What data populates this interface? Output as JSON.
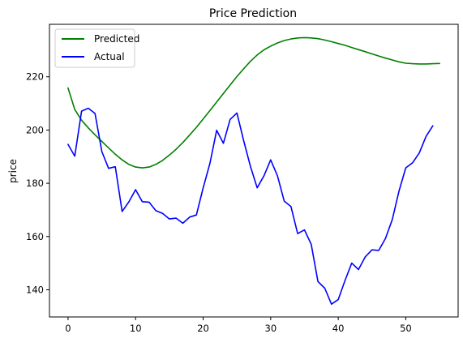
{
  "chart_data": {
    "type": "line",
    "title": "Price Prediction",
    "xlabel": "",
    "ylabel": "price",
    "xlim": [
      -2.75,
      57.75
    ],
    "ylim": [
      129.8,
      239.7
    ],
    "xticks": [
      0,
      10,
      20,
      30,
      40,
      50
    ],
    "yticks": [
      140,
      160,
      180,
      200,
      220
    ],
    "grid": false,
    "legend_position": "top-left",
    "series": [
      {
        "name": "Predicted",
        "color": "#008000",
        "x": [
          0,
          1,
          2,
          3,
          4,
          5,
          6,
          7,
          8,
          9,
          10,
          11,
          12,
          13,
          14,
          15,
          16,
          17,
          18,
          19,
          20,
          21,
          22,
          23,
          24,
          25,
          26,
          27,
          28,
          29,
          30,
          31,
          32,
          33,
          34,
          35,
          36,
          37,
          38,
          39,
          40,
          41,
          42,
          43,
          44,
          45,
          46,
          47,
          48,
          49,
          50,
          51,
          52,
          53,
          54,
          55
        ],
        "y": [
          215.8,
          207.7,
          203.7,
          200.8,
          198.2,
          195.7,
          193.3,
          190.9,
          188.8,
          187.1,
          186.1,
          185.8,
          186.1,
          187.1,
          188.6,
          190.6,
          192.8,
          195.3,
          198.1,
          201.0,
          204.1,
          207.3,
          210.5,
          213.7,
          216.9,
          220.1,
          223.0,
          225.8,
          228.2,
          230.1,
          231.5,
          232.7,
          233.6,
          234.2,
          234.6,
          234.7,
          234.6,
          234.3,
          233.8,
          233.2,
          232.5,
          231.8,
          231.0,
          230.2,
          229.4,
          228.6,
          227.8,
          227.0,
          226.3,
          225.6,
          225.1,
          224.9,
          224.8,
          224.8,
          224.9,
          225.0
        ]
      },
      {
        "name": "Actual",
        "color": "#0000ff",
        "x": [
          0,
          1,
          2,
          3,
          4,
          5,
          6,
          7,
          8,
          9,
          10,
          11,
          12,
          13,
          14,
          15,
          16,
          17,
          18,
          19,
          20,
          21,
          22,
          23,
          24,
          25,
          26,
          27,
          28,
          29,
          30,
          31,
          32,
          33,
          34,
          35,
          36,
          37,
          38,
          39,
          40,
          41,
          42,
          43,
          44,
          45,
          46,
          47,
          48,
          49,
          50,
          51,
          52,
          53,
          54
        ],
        "y": [
          194.6,
          190.2,
          207.1,
          208.2,
          206.2,
          191.9,
          185.6,
          186.2,
          169.4,
          173.0,
          177.6,
          173.1,
          172.9,
          169.7,
          168.7,
          166.6,
          166.9,
          165.0,
          167.3,
          168.1,
          178.2,
          187.5,
          199.9,
          195.0,
          204.0,
          206.4,
          196.0,
          186.4,
          178.3,
          182.8,
          188.8,
          182.8,
          173.3,
          171.3,
          161.1,
          162.5,
          157.1,
          143.1,
          140.6,
          134.6,
          136.3,
          143.5,
          150.0,
          147.6,
          152.4,
          155.0,
          154.8,
          159.3,
          166.4,
          177.1,
          185.8,
          187.7,
          191.4,
          197.6,
          201.6
        ]
      }
    ]
  }
}
